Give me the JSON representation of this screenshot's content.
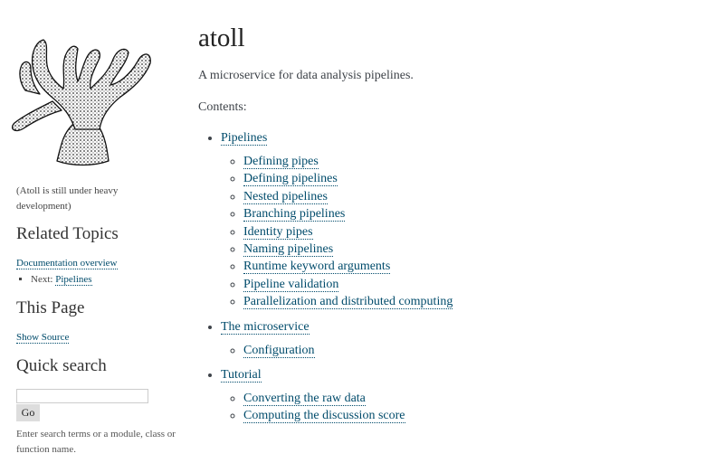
{
  "sidebar": {
    "logo_icon": "coral-logo-icon",
    "dev_note": "(Atoll is still under heavy development)",
    "related_topics": {
      "heading": "Related Topics",
      "overview_link": "Documentation overview",
      "next_label": "Next:",
      "next_link": "Pipelines"
    },
    "this_page": {
      "heading": "This Page",
      "show_source": "Show Source"
    },
    "quick_search": {
      "heading": "Quick search",
      "input_value": "",
      "go_label": "Go",
      "help": "Enter search terms or a module, class or function name."
    }
  },
  "main": {
    "title": "atoll",
    "description": "A microservice for data analysis pipelines.",
    "contents_label": "Contents:",
    "toc": [
      {
        "label": "Pipelines",
        "children": [
          "Defining pipes",
          "Defining pipelines",
          "Nested pipelines",
          "Branching pipelines",
          "Identity pipes",
          "Naming pipelines",
          "Runtime keyword arguments",
          "Pipeline validation",
          "Parallelization and distributed computing"
        ]
      },
      {
        "label": "The microservice",
        "children": [
          "Configuration"
        ]
      },
      {
        "label": "Tutorial",
        "children": [
          "Converting the raw data",
          "Computing the discussion score"
        ]
      }
    ]
  }
}
